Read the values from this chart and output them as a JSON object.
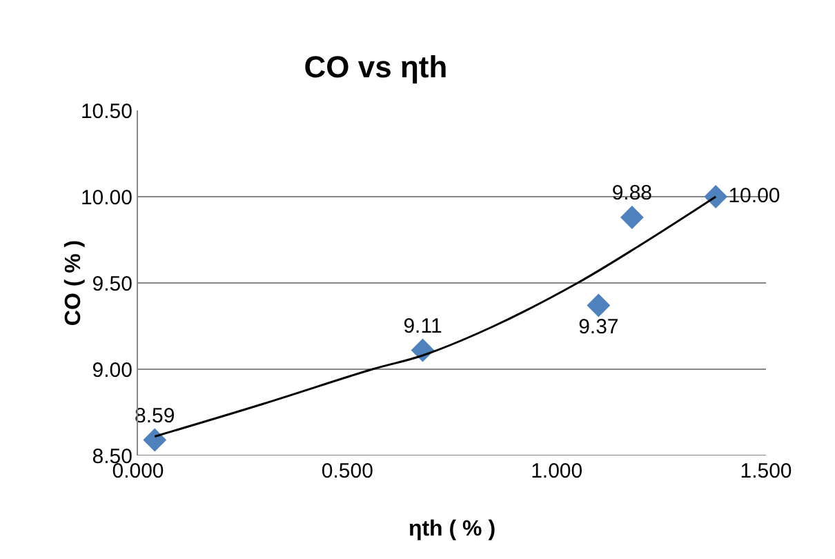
{
  "chart_data": {
    "type": "scatter",
    "title": "CO vs ηth",
    "xlabel": "ηth ( % )",
    "ylabel": "CO ( % )",
    "xlim": [
      0,
      1.5
    ],
    "xticks": [
      {
        "value": 0,
        "label": "0.000"
      },
      {
        "value": 0.5,
        "label": "0.500"
      },
      {
        "value": 1,
        "label": "1.000"
      },
      {
        "value": 1.5,
        "label": "1.500"
      }
    ],
    "ylim": [
      8.5,
      10.5
    ],
    "yticks": [
      {
        "value": 8.5,
        "label": "8.50"
      },
      {
        "value": 9,
        "label": "9.00"
      },
      {
        "value": 9.5,
        "label": "9.50"
      },
      {
        "value": 10,
        "label": "10.00"
      },
      {
        "value": 10.5,
        "label": "10.50"
      }
    ],
    "grid": "y",
    "legend": false,
    "series": [
      {
        "marker": "diamond",
        "color": "#4f81bd",
        "x": [
          0.04,
          0.68,
          1.1,
          1.18,
          1.38
        ],
        "values": [
          8.59,
          9.11,
          9.37,
          9.88,
          10.0
        ],
        "value_labels": [
          "8.59",
          "9.11",
          "9.37",
          "9.88",
          "10.00"
        ]
      },
      {
        "type": "line",
        "marker": "none",
        "color": "#000000",
        "x": [
          0.04,
          0.3,
          0.56,
          0.68,
          0.85,
          1.05,
          1.2,
          1.38
        ],
        "values": [
          8.61,
          8.8,
          9.0,
          9.08,
          9.25,
          9.5,
          9.72,
          10.0
        ]
      }
    ]
  }
}
